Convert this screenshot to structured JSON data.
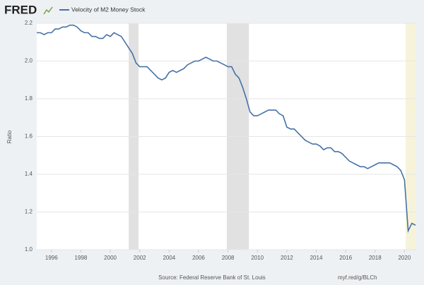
{
  "logo": "FRED",
  "source": "Source: Federal Reserve Bank of St. Louis",
  "short_url": "myf.red/g/BLCh",
  "chart_data": {
    "type": "line",
    "y_label": "Ratio",
    "x": [
      1995,
      1995.25,
      1995.5,
      1995.75,
      1996,
      1996.25,
      1996.5,
      1996.75,
      1997,
      1997.25,
      1997.5,
      1997.75,
      1998,
      1998.25,
      1998.5,
      1998.75,
      1999,
      1999.25,
      1999.5,
      1999.75,
      2000,
      2000.25,
      2000.5,
      2000.75,
      2001,
      2001.25,
      2001.5,
      2001.75,
      2002,
      2002.25,
      2002.5,
      2002.75,
      2003,
      2003.25,
      2003.5,
      2003.75,
      2004,
      2004.25,
      2004.5,
      2004.75,
      2005,
      2005.25,
      2005.5,
      2005.75,
      2006,
      2006.25,
      2006.5,
      2006.75,
      2007,
      2007.25,
      2007.5,
      2007.75,
      2008,
      2008.25,
      2008.5,
      2008.75,
      2009,
      2009.25,
      2009.5,
      2009.75,
      2010,
      2010.25,
      2010.5,
      2010.75,
      2011,
      2011.25,
      2011.5,
      2011.75,
      2012,
      2012.25,
      2012.5,
      2012.75,
      2013,
      2013.25,
      2013.5,
      2013.75,
      2014,
      2014.25,
      2014.5,
      2014.75,
      2015,
      2015.25,
      2015.5,
      2015.75,
      2016,
      2016.25,
      2016.5,
      2016.75,
      2017,
      2017.25,
      2017.5,
      2017.75,
      2018,
      2018.25,
      2018.5,
      2018.75,
      2019,
      2019.25,
      2019.5,
      2019.75,
      2020,
      2020.25,
      2020.5,
      2020.75
    ],
    "series": [
      {
        "name": "Velocity of M2 Money Stock",
        "color": "#4572a7",
        "values": [
          2.15,
          2.15,
          2.14,
          2.15,
          2.15,
          2.17,
          2.17,
          2.18,
          2.18,
          2.19,
          2.19,
          2.18,
          2.16,
          2.15,
          2.15,
          2.13,
          2.13,
          2.12,
          2.12,
          2.14,
          2.13,
          2.15,
          2.14,
          2.13,
          2.1,
          2.07,
          2.04,
          1.99,
          1.97,
          1.97,
          1.97,
          1.95,
          1.93,
          1.91,
          1.9,
          1.91,
          1.94,
          1.95,
          1.94,
          1.95,
          1.96,
          1.98,
          1.99,
          2.0,
          2.0,
          2.01,
          2.02,
          2.01,
          2.0,
          2.0,
          1.99,
          1.98,
          1.97,
          1.97,
          1.93,
          1.91,
          1.86,
          1.8,
          1.73,
          1.71,
          1.71,
          1.72,
          1.73,
          1.74,
          1.74,
          1.74,
          1.72,
          1.71,
          1.65,
          1.64,
          1.64,
          1.62,
          1.6,
          1.58,
          1.57,
          1.56,
          1.56,
          1.55,
          1.53,
          1.54,
          1.54,
          1.52,
          1.52,
          1.51,
          1.49,
          1.47,
          1.46,
          1.45,
          1.44,
          1.44,
          1.43,
          1.44,
          1.45,
          1.46,
          1.46,
          1.46,
          1.46,
          1.45,
          1.44,
          1.42,
          1.37,
          1.1,
          1.14,
          1.13
        ]
      }
    ],
    "recessions": [
      [
        2001.25,
        2001.92
      ],
      [
        2007.92,
        2009.42
      ]
    ],
    "recession_color": "#e1e1e1",
    "highlight": [
      2020.08,
      2020.75
    ],
    "highlight_color": "#f7f3da",
    "xlim": [
      1995,
      2020.75
    ],
    "xticks": [
      1996,
      1998,
      2000,
      2002,
      2004,
      2006,
      2008,
      2010,
      2012,
      2014,
      2016,
      2018,
      2020
    ],
    "ylim": [
      1.0,
      2.2
    ],
    "yticks": [
      {
        "value": 1,
        "label": "1.0"
      },
      1.2,
      1.4,
      1.6,
      1.8,
      {
        "value": 2,
        "label": "2.0"
      },
      2.2
    ],
    "grid": true
  }
}
